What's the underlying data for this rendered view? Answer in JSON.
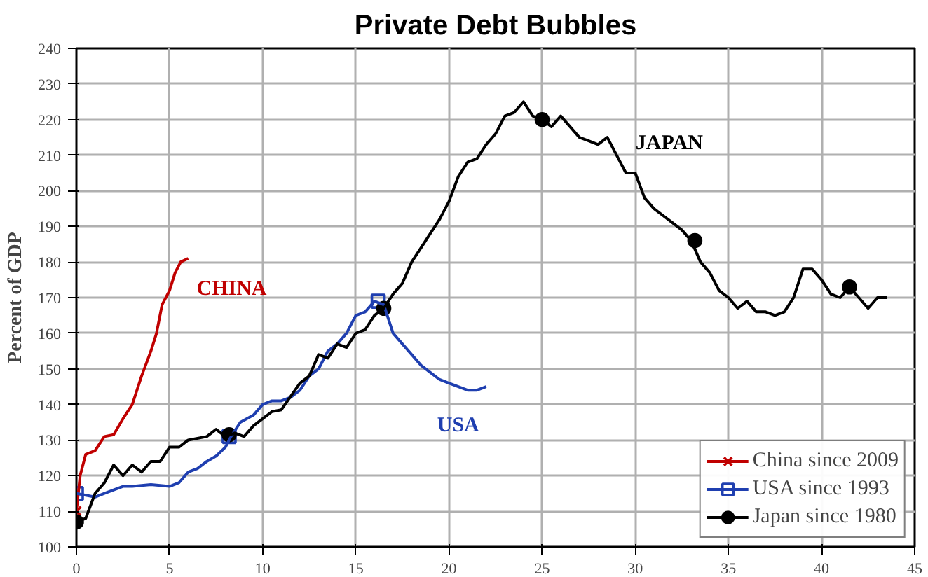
{
  "chart_data": {
    "type": "line",
    "title": "Private Debt Bubbles",
    "ylabel": "Percent of GDP",
    "xlim": [
      0,
      45
    ],
    "xticks": [
      0,
      5,
      10,
      15,
      20,
      25,
      30,
      35,
      40,
      45
    ],
    "ylim": [
      100,
      240
    ],
    "yticks": [
      100,
      110,
      120,
      130,
      140,
      150,
      160,
      170,
      180,
      190,
      200,
      210,
      220,
      230,
      240
    ],
    "grid": true,
    "legend": "bottom right",
    "series": [
      {
        "name": "China since 2009",
        "color": "#c00000",
        "x": [
          0,
          0.2,
          0.5,
          1,
          1.5,
          2,
          2.5,
          3,
          3.5,
          4,
          4.3,
          4.6,
          5,
          5.3,
          5.6,
          6
        ],
        "values": [
          110,
          120,
          126,
          127,
          131,
          131.5,
          136,
          140,
          148,
          155,
          160,
          168,
          172,
          177,
          180,
          181
        ]
      },
      {
        "name": "USA since 1993",
        "color": "#1f3fb0",
        "x": [
          0,
          0.5,
          1,
          1.5,
          2,
          2.5,
          3,
          4,
          5,
          5.5,
          6,
          6.5,
          7,
          7.5,
          8,
          8.3,
          8.8,
          9.5,
          10,
          10.5,
          11,
          11.5,
          12,
          12.5,
          13,
          13.5,
          14,
          14.5,
          15,
          15.5,
          16,
          16.5,
          17,
          17.5,
          18,
          18.5,
          19,
          19.5,
          20,
          20.5,
          21,
          21.5,
          22
        ],
        "values": [
          115,
          114.5,
          114,
          115,
          116,
          117,
          117,
          117.5,
          117,
          118,
          121,
          122,
          124,
          125.5,
          128,
          131,
          135,
          137,
          140,
          141,
          141,
          142,
          144,
          148,
          150,
          155,
          157,
          160,
          165,
          166,
          169,
          168,
          160,
          157,
          154,
          151,
          149,
          147,
          146,
          145,
          144,
          144,
          145
        ]
      },
      {
        "name": "Japan since 1980",
        "color": "#000000",
        "x": [
          0,
          0.5,
          1,
          1.5,
          2,
          2.5,
          3,
          3.5,
          4,
          4.5,
          5,
          5.5,
          6,
          7,
          7.5,
          8,
          8.5,
          9,
          9.5,
          10,
          10.5,
          11,
          12,
          12.5,
          13,
          13.5,
          14,
          14.5,
          15,
          15.5,
          16,
          16.5,
          17,
          17.5,
          18,
          18.5,
          19,
          19.5,
          20,
          20.5,
          21,
          21.5,
          22,
          22.5,
          23,
          23.5,
          24,
          24.5,
          25,
          25.5,
          26,
          26.5,
          27,
          27.5,
          28,
          28.5,
          29,
          29.5,
          30,
          30.5,
          31,
          31.5,
          32,
          32.5,
          33,
          33.5,
          34,
          34.5,
          35,
          35.5,
          36,
          36.5,
          37,
          37.5,
          38,
          38.5,
          39,
          39.5,
          40,
          40.5,
          41,
          41.5,
          42,
          42.5,
          43,
          43.5
        ],
        "values": [
          107,
          108,
          115,
          118,
          123,
          120,
          123,
          121,
          124,
          124,
          128,
          128,
          130,
          131,
          133,
          131,
          132,
          131,
          134,
          136,
          138,
          138.5,
          146,
          148,
          154,
          153,
          157,
          156,
          160,
          161,
          165,
          167,
          171,
          174,
          180,
          184,
          188,
          192,
          197,
          204,
          208,
          209,
          213,
          216,
          221,
          222,
          225,
          221,
          220,
          218,
          221,
          218,
          215,
          214,
          213,
          215,
          210,
          205,
          205,
          198,
          195,
          193,
          191,
          189,
          186,
          180,
          177,
          172,
          170,
          167,
          169,
          166,
          166,
          165,
          166,
          170,
          178,
          178,
          175,
          171,
          170,
          173,
          170,
          167,
          170,
          170
        ]
      },
      {
        "type": "scatter",
        "color": "#c00000",
        "marker": "cross",
        "x": [
          0
        ],
        "values": [
          110
        ]
      },
      {
        "type": "scatter",
        "color": "#1f3fb0",
        "marker": "square",
        "x": [
          0,
          8.2,
          16.2
        ],
        "values": [
          115,
          131,
          169
        ]
      },
      {
        "type": "scatter",
        "color": "#000000",
        "marker": "circle",
        "x": [
          0,
          8.2,
          16.5,
          25,
          33.2,
          41.5
        ],
        "values": [
          107,
          131.5,
          167,
          220,
          186,
          173
        ]
      }
    ],
    "annotations": [
      "CHINA",
      "USA",
      "JAPAN"
    ]
  }
}
